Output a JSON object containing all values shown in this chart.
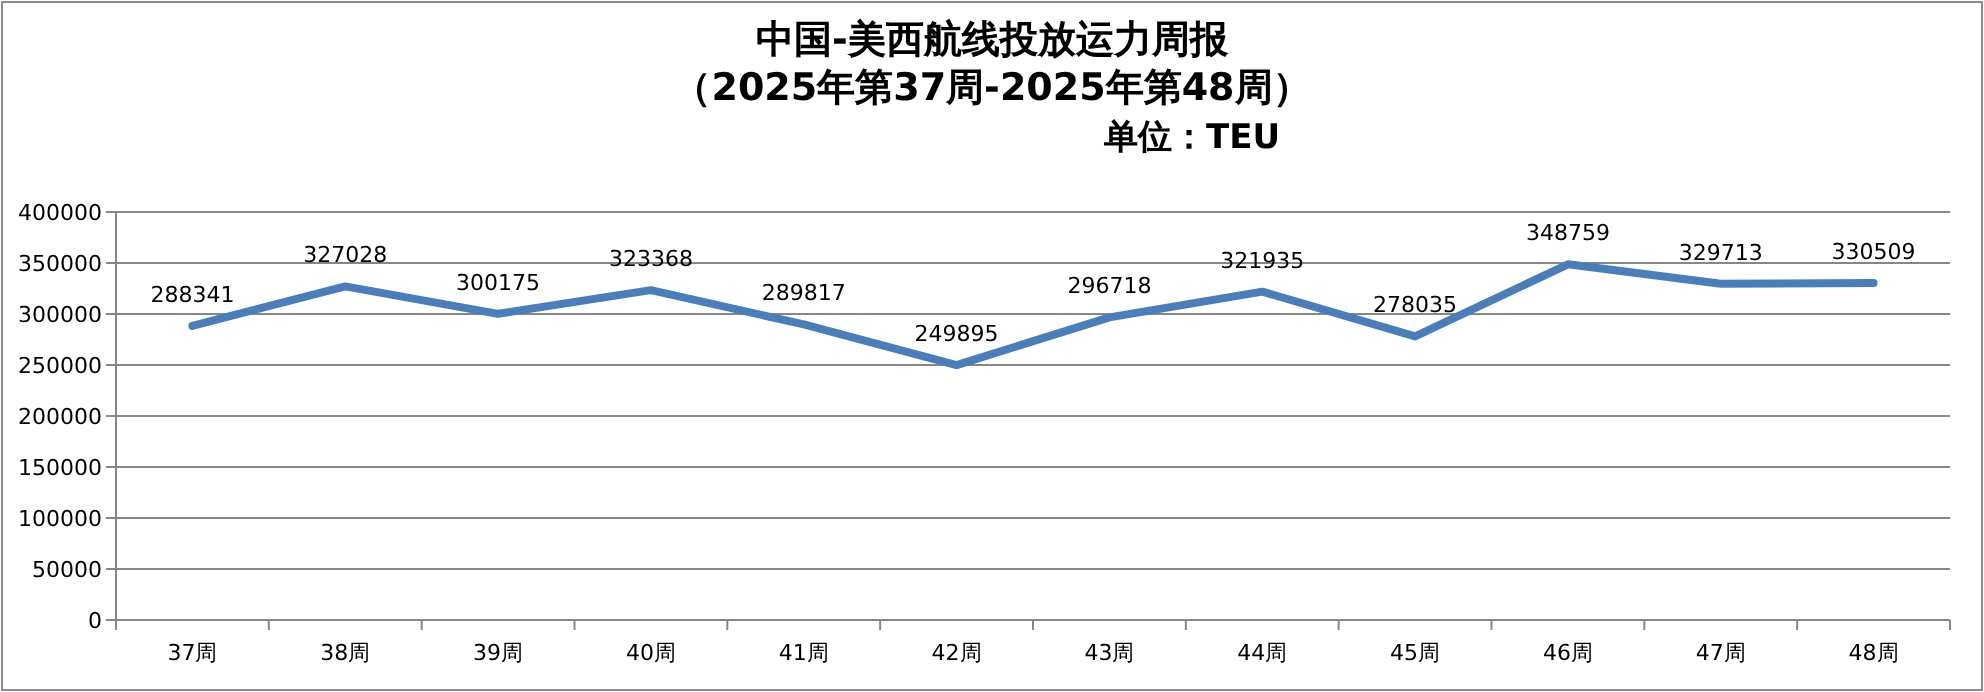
{
  "chart_data": {
    "type": "line",
    "title": "中国-美西航线投放运力周报",
    "subtitle": "（2025年第37周-2025年第48周）",
    "annotations": [
      "单位：TEU"
    ],
    "categories": [
      "37周",
      "38周",
      "39周",
      "40周",
      "41周",
      "42周",
      "43周",
      "44周",
      "45周",
      "46周",
      "47周",
      "48周"
    ],
    "values": [
      288341,
      327028,
      300175,
      323368,
      289817,
      249895,
      296718,
      321935,
      278035,
      348759,
      329713,
      330509
    ],
    "color": "#4a7ebb",
    "ylim": [
      0,
      400000
    ],
    "yticks": [
      0,
      50000,
      100000,
      150000,
      200000,
      250000,
      300000,
      350000,
      400000
    ],
    "grid": "y",
    "data_labels": true
  }
}
